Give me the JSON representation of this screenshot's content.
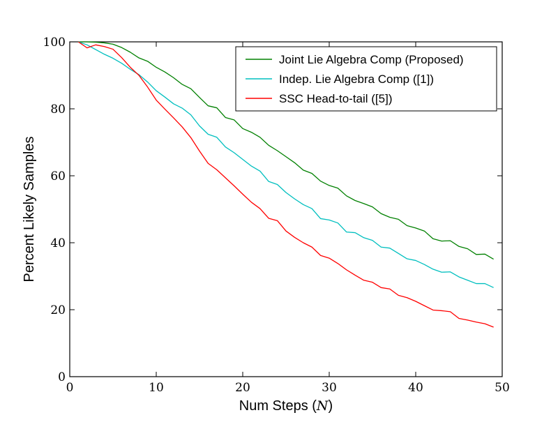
{
  "chart_data": {
    "type": "line",
    "title": "",
    "xlabel_prefix": "Num Steps (",
    "xlabel_math": "N",
    "xlabel_suffix": ")",
    "ylabel": "Percent Likely Samples",
    "xlim": [
      0,
      50
    ],
    "ylim": [
      0,
      100
    ],
    "xticks": [
      0,
      10,
      20,
      30,
      40,
      50
    ],
    "yticks": [
      0,
      20,
      40,
      60,
      80,
      100
    ],
    "xtick_labels": [
      "0",
      "10",
      "20",
      "30",
      "40",
      "50"
    ],
    "ytick_labels": [
      "0",
      "20",
      "40",
      "60",
      "80",
      "100"
    ],
    "grid": false,
    "legend_position": "top-right",
    "x": [
      1,
      2,
      3,
      4,
      5,
      6,
      7,
      8,
      9,
      10,
      11,
      12,
      13,
      14,
      15,
      16,
      17,
      18,
      19,
      20,
      21,
      22,
      23,
      24,
      25,
      26,
      27,
      28,
      29,
      30,
      31,
      32,
      33,
      34,
      35,
      36,
      37,
      38,
      39,
      40,
      41,
      42,
      43,
      44,
      45,
      46,
      47,
      48,
      49
    ],
    "series": [
      {
        "name": "Joint Lie Algebra Comp (Proposed)",
        "color": "#008000",
        "values": [
          100,
          100,
          99.9,
          99.7,
          99.3,
          98.3,
          96.9,
          95.2,
          94.2,
          92.4,
          91.0,
          89.3,
          87.3,
          86.0,
          83.4,
          80.9,
          80.3,
          77.4,
          76.7,
          74.1,
          73.0,
          71.5,
          69.1,
          67.5,
          65.7,
          63.9,
          61.7,
          60.7,
          58.4,
          57.1,
          56.3,
          54.0,
          52.6,
          51.7,
          50.7,
          48.7,
          47.6,
          47.0,
          45.1,
          44.4,
          43.5,
          41.2,
          40.5,
          40.6,
          38.9,
          38.2,
          36.5,
          36.6,
          35.1
        ]
      },
      {
        "name": "Indep. Lie Algebra Comp ([1])",
        "color": "#00bfbf",
        "values": [
          100,
          99.1,
          97.7,
          96.3,
          95.1,
          93.6,
          91.8,
          90.2,
          88.0,
          85.4,
          83.5,
          81.5,
          80.2,
          78.2,
          74.9,
          72.4,
          71.5,
          68.6,
          66.9,
          64.9,
          62.9,
          61.4,
          58.3,
          57.4,
          55.0,
          53.1,
          51.4,
          50.2,
          47.2,
          46.8,
          45.9,
          43.2,
          43.0,
          41.5,
          40.7,
          38.7,
          38.4,
          36.8,
          35.2,
          34.7,
          33.5,
          32.1,
          31.2,
          31.3,
          29.8,
          28.8,
          27.8,
          27.8,
          26.6
        ]
      },
      {
        "name": "SSC Head-to-tail ([5])",
        "color": "#ff0000",
        "values": [
          100,
          98.2,
          99.1,
          98.6,
          97.8,
          95.3,
          92.4,
          90.0,
          86.5,
          82.6,
          79.9,
          77.3,
          74.6,
          71.4,
          67.4,
          63.7,
          61.8,
          59.4,
          57.0,
          54.5,
          52.1,
          50.2,
          47.3,
          46.6,
          43.5,
          41.6,
          40.0,
          38.7,
          36.2,
          35.4,
          33.8,
          31.9,
          30.3,
          28.8,
          28.2,
          26.6,
          26.2,
          24.3,
          23.6,
          22.5,
          21.2,
          19.9,
          19.7,
          19.4,
          17.4,
          16.9,
          16.3,
          15.8,
          14.8
        ]
      }
    ]
  }
}
